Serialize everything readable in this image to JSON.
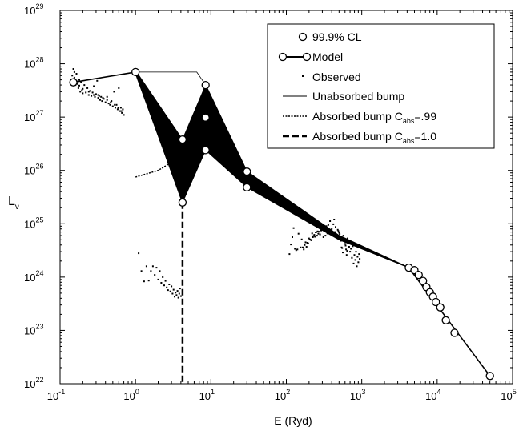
{
  "chart_data": {
    "type": "scatter",
    "title": "",
    "xlabel": "E (Ryd)",
    "ylabel_main": "L",
    "ylabel_sub": "ν",
    "x_scale": "log",
    "y_scale": "log",
    "xlim": [
      0.1,
      100000
    ],
    "ylim": [
      1e+22,
      1e+29
    ],
    "grid": false,
    "legend_position": "top-right",
    "x_ticks": [
      {
        "base": "10",
        "exp": "-1",
        "value": 0.1
      },
      {
        "base": "10",
        "exp": "0",
        "value": 1
      },
      {
        "base": "10",
        "exp": "1",
        "value": 10
      },
      {
        "base": "10",
        "exp": "2",
        "value": 100
      },
      {
        "base": "10",
        "exp": "3",
        "value": 1000
      },
      {
        "base": "10",
        "exp": "4",
        "value": 10000
      },
      {
        "base": "10",
        "exp": "5",
        "value": 100000
      }
    ],
    "y_ticks": [
      {
        "base": "10",
        "exp": "22",
        "value": 1e+22
      },
      {
        "base": "10",
        "exp": "23",
        "value": 1e+23
      },
      {
        "base": "10",
        "exp": "24",
        "value": 1e+24
      },
      {
        "base": "10",
        "exp": "25",
        "value": 1e+25
      },
      {
        "base": "10",
        "exp": "26",
        "value": 1e+26
      },
      {
        "base": "10",
        "exp": "27",
        "value": 1e+27
      },
      {
        "base": "10",
        "exp": "28",
        "value": 1e+28
      },
      {
        "base": "10",
        "exp": "29",
        "value": 1e+29
      }
    ],
    "legend": [
      {
        "key": "cl",
        "label": "99.9% CL",
        "sub": "",
        "tail": ""
      },
      {
        "key": "model",
        "label": "Model",
        "sub": "",
        "tail": ""
      },
      {
        "key": "observed",
        "label": "Observed",
        "sub": "",
        "tail": ""
      },
      {
        "key": "unabsorbed",
        "label": "Unabsorbed bump",
        "sub": "",
        "tail": ""
      },
      {
        "key": "abs99",
        "label": "Absorbed bump C",
        "sub": "abs",
        "tail": "=.99"
      },
      {
        "key": "abs10",
        "label": "Absorbed bump C",
        "sub": "abs",
        "tail": "=1.0"
      }
    ],
    "series": {
      "model": {
        "name": "Model",
        "points": [
          [
            0.15,
            4.5e+27
          ],
          [
            1.0,
            7e+27
          ],
          [
            4.2,
            2.5e+25
          ],
          [
            8.5,
            4e+27
          ],
          [
            30,
            9.5e+25
          ],
          [
            500,
            6e+24
          ],
          [
            4200,
            1.5e+24
          ],
          [
            50000,
            1.4e+22
          ]
        ]
      },
      "cl_circles": {
        "name": "99.9% CL",
        "points": [
          [
            0.15,
            4.5e+27
          ],
          [
            1.0,
            7e+27
          ],
          [
            4.2,
            3.8e+26
          ],
          [
            4.2,
            2.5e+25
          ],
          [
            8.5,
            4e+27
          ],
          [
            8.5,
            9.8e+26
          ],
          [
            8.5,
            2.4e+26
          ],
          [
            30,
            9.5e+25
          ],
          [
            30,
            4.8e+25
          ],
          [
            4200,
            1.5e+24
          ],
          [
            5000,
            1.35e+24
          ],
          [
            5700,
            1.1e+24
          ],
          [
            6500,
            8.5e+23
          ],
          [
            7200,
            6.5e+23
          ],
          [
            8000,
            5.2e+23
          ],
          [
            8800,
            4.3e+23
          ],
          [
            9600,
            3.4e+23
          ],
          [
            11000,
            2.7e+23
          ],
          [
            13000,
            1.55e+23
          ],
          [
            17000,
            9e+22
          ],
          [
            50000,
            1.4e+22
          ]
        ]
      },
      "unabsorbed": {
        "name": "Unabsorbed bump",
        "points": [
          [
            1.0,
            7e+27
          ],
          [
            6.5,
            7e+27
          ],
          [
            8.5,
            4e+27
          ]
        ]
      },
      "absorbed_99": {
        "name": "Absorbed bump Cabs=.99",
        "points": [
          [
            1.0,
            7.5e+25
          ],
          [
            2.0,
            1e+26
          ],
          [
            3.2,
            1.5e+26
          ],
          [
            4.2,
            3e+26
          ]
        ]
      },
      "absorbed_10": {
        "name": "Absorbed bump Cabs=1.0",
        "points": [
          [
            4.2,
            2.5e+25
          ],
          [
            4.2,
            1e+22
          ]
        ]
      },
      "envelope_upper": [
        [
          1.0,
          7.5e+27
        ],
        [
          4.2,
          3.8e+26
        ],
        [
          8.5,
          4e+27
        ],
        [
          30,
          9.5e+25
        ],
        [
          500,
          6e+24
        ],
        [
          4200,
          1.5e+24
        ]
      ],
      "envelope_lower": [
        [
          1.0,
          6.5e+27
        ],
        [
          4.2,
          2.5e+25
        ],
        [
          8.5,
          2.4e+26
        ],
        [
          30,
          4.8e+25
        ],
        [
          500,
          5e+24
        ],
        [
          4200,
          1.5e+24
        ]
      ],
      "observed": {
        "name": "Observed",
        "points": [
          [
            0.14,
            4.8e+27
          ],
          [
            0.145,
            6e+27
          ],
          [
            0.15,
            8e+27
          ],
          [
            0.155,
            5.5e+27
          ],
          [
            0.16,
            4e+27
          ],
          [
            0.165,
            6.5e+27
          ],
          [
            0.17,
            4.2e+27
          ],
          [
            0.175,
            3.5e+27
          ],
          [
            0.18,
            5e+27
          ],
          [
            0.185,
            3e+27
          ],
          [
            0.19,
            4.5e+27
          ],
          [
            0.195,
            3.2e+27
          ],
          [
            0.2,
            2.8e+27
          ],
          [
            0.21,
            4e+27
          ],
          [
            0.22,
            2.9e+27
          ],
          [
            0.23,
            3.5e+27
          ],
          [
            0.24,
            2.6e+27
          ],
          [
            0.25,
            3.1e+27
          ],
          [
            0.26,
            2.5e+27
          ],
          [
            0.27,
            2.9e+27
          ],
          [
            0.28,
            3.8e+27
          ],
          [
            0.29,
            2.4e+27
          ],
          [
            0.3,
            2.7e+27
          ],
          [
            0.31,
            4.8e+27
          ],
          [
            0.32,
            2.3e+27
          ],
          [
            0.33,
            2.5e+27
          ],
          [
            0.34,
            2.1e+27
          ],
          [
            0.35,
            2.4e+27
          ],
          [
            0.36,
            2e+27
          ],
          [
            0.38,
            2.2e+27
          ],
          [
            0.4,
            1.9e+27
          ],
          [
            0.42,
            2.4e+27
          ],
          [
            0.44,
            1.8e+27
          ],
          [
            0.46,
            1.7e+27
          ],
          [
            0.48,
            2e+27
          ],
          [
            0.5,
            1.6e+27
          ],
          [
            0.52,
            3e+27
          ],
          [
            0.54,
            1.5e+27
          ],
          [
            0.56,
            1.7e+27
          ],
          [
            0.58,
            1.4e+27
          ],
          [
            0.6,
            3.5e+27
          ],
          [
            0.62,
            1.3e+27
          ],
          [
            0.64,
            1.5e+27
          ],
          [
            0.66,
            1.2e+27
          ],
          [
            0.68,
            1.4e+27
          ],
          [
            0.7,
            1.1e+27
          ],
          [
            110,
            2.7e+24
          ],
          [
            115,
            4.1e+24
          ],
          [
            120,
            5.6e+24
          ],
          [
            125,
            8.3e+24
          ],
          [
            130,
            3.4e+24
          ],
          [
            135,
            3.2e+24
          ],
          [
            140,
            3.3e+24
          ],
          [
            145,
            6.5e+24
          ],
          [
            155,
            3.6e+24
          ],
          [
            160,
            5.1e+24
          ],
          [
            165,
            3.6e+24
          ],
          [
            170,
            3.3e+24
          ],
          [
            175,
            4e+24
          ],
          [
            180,
            4.5e+24
          ],
          [
            185,
            3.7e+24
          ],
          [
            190,
            4.4e+24
          ],
          [
            195,
            4.3e+24
          ],
          [
            200,
            5.3e+24
          ],
          [
            205,
            5.1e+24
          ],
          [
            210,
            5e+24
          ],
          [
            215,
            4.9e+24
          ],
          [
            220,
            6.6e+24
          ],
          [
            225,
            5.6e+24
          ],
          [
            230,
            5.9e+24
          ],
          [
            235,
            6.2e+24
          ],
          [
            240,
            5.7e+24
          ],
          [
            245,
            6.9e+24
          ],
          [
            250,
            7e+24
          ],
          [
            255,
            6e+24
          ],
          [
            260,
            7.2e+24
          ],
          [
            265,
            6.5e+24
          ],
          [
            270,
            7.1e+24
          ],
          [
            280,
            6.3e+24
          ],
          [
            290,
            7.5e+24
          ],
          [
            300,
            8e+24
          ],
          [
            310,
            5.6e+24
          ],
          [
            320,
            8.4e+24
          ],
          [
            330,
            6e+24
          ],
          [
            340,
            9e+24
          ],
          [
            350,
            6.6e+24
          ],
          [
            360,
            9.5e+24
          ],
          [
            370,
            6.8e+24
          ],
          [
            380,
            1.12e+25
          ],
          [
            390,
            7.2e+24
          ],
          [
            400,
            8e+24
          ],
          [
            410,
            6.4e+24
          ],
          [
            420,
            9.8e+24
          ],
          [
            430,
            1.2e+25
          ],
          [
            440,
            7e+24
          ],
          [
            450,
            8.7e+24
          ],
          [
            460,
            5.6e+24
          ],
          [
            470,
            6.2e+24
          ],
          [
            480,
            7.7e+24
          ],
          [
            490,
            7.3e+24
          ],
          [
            500,
            6.8e+24
          ],
          [
            510,
            6.4e+24
          ],
          [
            520,
            5.7e+24
          ],
          [
            530,
            4.8e+24
          ],
          [
            540,
            3.6e+24
          ],
          [
            550,
            3.5e+24
          ],
          [
            560,
            2.9e+24
          ],
          [
            570,
            6e+24
          ],
          [
            580,
            5e+24
          ],
          [
            590,
            4.6e+24
          ],
          [
            600,
            4.2e+24
          ],
          [
            610,
            3.9e+24
          ],
          [
            620,
            3.3e+24
          ],
          [
            630,
            2.6e+24
          ],
          [
            640,
            3.1e+24
          ],
          [
            650,
            5.3e+24
          ],
          [
            660,
            4.7e+24
          ],
          [
            670,
            4.3e+24
          ],
          [
            680,
            3.7e+24
          ],
          [
            700,
            3e+24
          ],
          [
            720,
            3.4e+24
          ],
          [
            740,
            2.3e+24
          ],
          [
            760,
            3.8e+24
          ],
          [
            780,
            1.8e+24
          ],
          [
            800,
            2.6e+24
          ],
          [
            820,
            2.1e+24
          ],
          [
            840,
            3e+24
          ],
          [
            860,
            1.6e+24
          ],
          [
            880,
            2.4e+24
          ],
          [
            900,
            1.9e+24
          ],
          [
            920,
            2.7e+24
          ],
          [
            940,
            2.2e+24
          ],
          [
            0.14,
            4.1e+27
          ],
          [
            0.155,
            7e+27
          ],
          [
            0.165,
            4.8e+27
          ],
          [
            0.18,
            3.9e+27
          ],
          [
            0.2,
            3.4e+27
          ],
          [
            0.24,
            3e+27
          ],
          [
            0.28,
            2.6e+27
          ],
          [
            0.32,
            2.6e+27
          ],
          [
            0.37,
            2.3e+27
          ],
          [
            0.42,
            2.1e+27
          ],
          [
            0.47,
            1.9e+27
          ],
          [
            0.53,
            1.7e+27
          ],
          [
            0.59,
            1.5e+27
          ],
          [
            0.65,
            1.3e+27
          ],
          [
            1.1,
            2.8e+24
          ],
          [
            1.2,
            1.3e+24
          ],
          [
            1.3,
            8.3e+23
          ],
          [
            1.4,
            1.6e+24
          ],
          [
            1.5,
            8.6e+23
          ],
          [
            1.6,
            1.3e+24
          ],
          [
            1.7,
            1.6e+24
          ],
          [
            1.8,
            1.1e+24
          ],
          [
            1.9,
            1.5e+24
          ],
          [
            2.0,
            9e+23
          ],
          [
            2.1,
            1.3e+24
          ],
          [
            2.2,
            7.8e+23
          ],
          [
            2.3,
            1e+24
          ],
          [
            2.4,
            7e+23
          ],
          [
            2.5,
            8.5e+23
          ],
          [
            2.6,
            6.4e+23
          ],
          [
            2.7,
            5.7e+23
          ],
          [
            2.8,
            7.3e+23
          ],
          [
            2.9,
            5.4e+23
          ],
          [
            3.0,
            6.7e+23
          ],
          [
            3.1,
            4.9e+23
          ],
          [
            3.2,
            5.8e+23
          ],
          [
            3.3,
            4.3e+23
          ],
          [
            3.4,
            5.1e+23
          ],
          [
            3.5,
            4.6e+23
          ],
          [
            3.6,
            5.5e+23
          ],
          [
            3.7,
            4.1e+23
          ],
          [
            3.8,
            4.9e+23
          ],
          [
            3.9,
            6.1e+23
          ],
          [
            4.0,
            4.4e+23
          ]
        ]
      }
    }
  }
}
